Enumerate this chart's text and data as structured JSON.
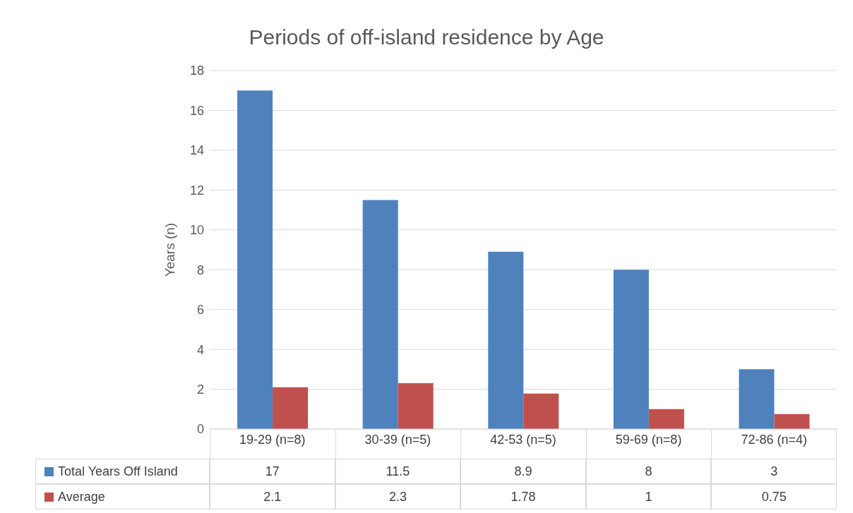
{
  "chart_data": {
    "type": "bar",
    "title": "Periods of off-island residence by Age",
    "ylabel": "Years (n)",
    "categories": [
      "19-29 (n=8)",
      "30-39 (n=5)",
      "42-53 (n=5)",
      "59-69 (n=8)",
      "72-86 (n=4)"
    ],
    "series": [
      {
        "name": "Total Years Off Island",
        "color": "#4f81bd",
        "values": [
          17,
          11.5,
          8.9,
          8,
          3
        ]
      },
      {
        "name": "Average",
        "color": "#c0504d",
        "values": [
          2.1,
          2.3,
          1.78,
          1,
          0.75
        ]
      }
    ],
    "ylim": [
      0,
      18
    ],
    "yticks": [
      0,
      2,
      4,
      6,
      8,
      10,
      12,
      14,
      16,
      18
    ],
    "grid": "y",
    "legend": "bottom",
    "data_labels": true
  }
}
